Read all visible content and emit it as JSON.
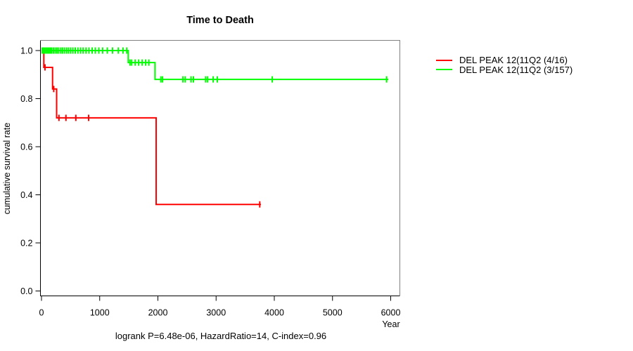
{
  "figure": {
    "title": "Time to Death",
    "y_axis_label": "cumulative survival rate",
    "x_axis_label": "Year",
    "annotation": "logrank P=6.48e-06, HazardRatio=14, C-index=0.96"
  },
  "chart_data": {
    "type": "line",
    "subtype": "kaplan-meier-step",
    "title": "Time to Death",
    "xlabel": "Year",
    "ylabel": "cumulative survival rate",
    "xlim": [
      0,
      6000
    ],
    "ylim": [
      0,
      1
    ],
    "x_ticks": [
      0,
      1000,
      2000,
      3000,
      4000,
      5000,
      6000
    ],
    "y_ticks": [
      0,
      0.2,
      0.4,
      0.6,
      0.8,
      1
    ],
    "y_tick_labels": [
      "0.0",
      "0.2",
      "0.4",
      "0.6",
      "0.8",
      "1.0"
    ],
    "grid": false,
    "legend_position": "outside-right",
    "axis_color": "#000000",
    "box_shade_color": "#808080",
    "annotation": "logrank P=6.48e-06, HazardRatio=14, C-index=0.96",
    "series": [
      {
        "name": "DEL PEAK 12(11Q2 (4/16)",
        "color": "#ff0000",
        "steps": [
          [
            0,
            1.0
          ],
          [
            40,
            0.93
          ],
          [
            190,
            0.84
          ],
          [
            260,
            0.72
          ],
          [
            1970,
            0.36
          ]
        ],
        "end_x": 3770,
        "censor_marks": [
          [
            60,
            0.93
          ],
          [
            210,
            0.84
          ],
          [
            300,
            0.72
          ],
          [
            420,
            0.72
          ],
          [
            590,
            0.72
          ],
          [
            810,
            0.72
          ],
          [
            3750,
            0.36
          ]
        ]
      },
      {
        "name": "DEL PEAK 12(11Q2 (3/157)",
        "color": "#00ff00",
        "steps": [
          [
            0,
            1.0
          ],
          [
            1490,
            0.95
          ],
          [
            1950,
            0.88
          ]
        ],
        "end_x": 5960,
        "censor_marks": [
          [
            12,
            1
          ],
          [
            35,
            1
          ],
          [
            58,
            1
          ],
          [
            82,
            1
          ],
          [
            105,
            1
          ],
          [
            128,
            1
          ],
          [
            152,
            1
          ],
          [
            175,
            1
          ],
          [
            205,
            1
          ],
          [
            235,
            1
          ],
          [
            265,
            1
          ],
          [
            295,
            1
          ],
          [
            330,
            1
          ],
          [
            360,
            1
          ],
          [
            395,
            1
          ],
          [
            430,
            1
          ],
          [
            465,
            1
          ],
          [
            500,
            1
          ],
          [
            540,
            1
          ],
          [
            580,
            1
          ],
          [
            625,
            1
          ],
          [
            670,
            1
          ],
          [
            715,
            1
          ],
          [
            765,
            1
          ],
          [
            815,
            1
          ],
          [
            870,
            1
          ],
          [
            925,
            1
          ],
          [
            985,
            1
          ],
          [
            1050,
            1
          ],
          [
            1130,
            1
          ],
          [
            1220,
            1
          ],
          [
            1320,
            1
          ],
          [
            1400,
            1
          ],
          [
            1465,
            1
          ],
          [
            1520,
            0.95
          ],
          [
            1550,
            0.95
          ],
          [
            1610,
            0.95
          ],
          [
            1670,
            0.95
          ],
          [
            1730,
            0.95
          ],
          [
            1790,
            0.95
          ],
          [
            1845,
            0.95
          ],
          [
            2050,
            0.88
          ],
          [
            2080,
            0.88
          ],
          [
            2430,
            0.88
          ],
          [
            2470,
            0.88
          ],
          [
            2570,
            0.88
          ],
          [
            2610,
            0.88
          ],
          [
            2820,
            0.88
          ],
          [
            2855,
            0.88
          ],
          [
            2950,
            0.88
          ],
          [
            3020,
            0.88
          ],
          [
            3965,
            0.88
          ],
          [
            5930,
            0.88
          ]
        ]
      }
    ]
  }
}
